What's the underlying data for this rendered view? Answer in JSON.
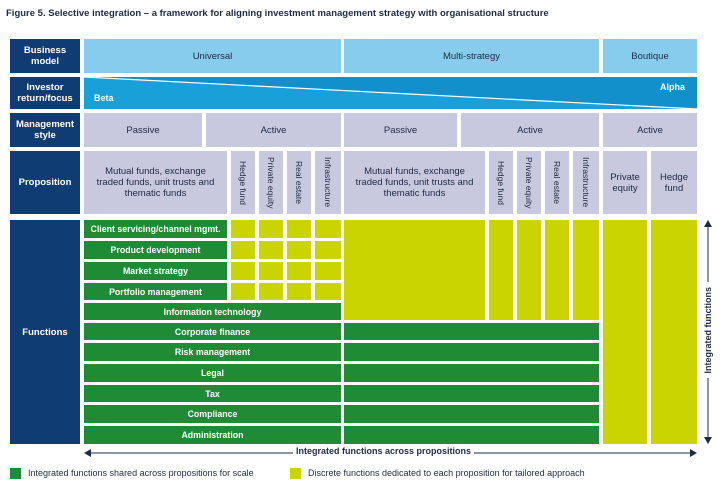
{
  "title": "Figure 5. Selective integration – a framework for aligning investment management strategy with organisational structure",
  "row_headers": {
    "business_model": "Business model",
    "investor_return": "Investor return/focus",
    "management_style": "Management style",
    "proposition": "Proposition",
    "functions": "Functions"
  },
  "business_models": [
    "Universal",
    "Multi-strategy",
    "Boutique"
  ],
  "investor_focus": {
    "left": "Beta",
    "right": "Alpha"
  },
  "management_styles": [
    "Passive",
    "Active",
    "Passive",
    "Active",
    "Active"
  ],
  "propositions": {
    "mutual_funds": "Mutual funds, exchange traded funds, unit trusts and thematic funds",
    "mutual_funds_2": "Mutual funds, exchange traded funds, unit trusts and thematic funds",
    "hedge_fund_v": "Hedge fund",
    "private_equity_v": "Private equity",
    "real_estate_v": "Real estate",
    "infrastructure_v": "Infrastructure",
    "hedge_fund_v2": "Hedge fund",
    "private_equity_v2": "Private equity",
    "real_estate_v2": "Real estate",
    "infrastructure_v2": "Infrastructure",
    "private_equity": "Private equity",
    "hedge_fund": "Hedge fund"
  },
  "functions": [
    "Client servicing/channel mgmt.",
    "Product development",
    "Market strategy",
    "Portfolio management",
    "Information technology",
    "Corporate finance",
    "Risk management",
    "Legal",
    "Tax",
    "Compliance",
    "Administration"
  ],
  "bottom_arrow_label": "Integrated functions across propositions",
  "side_arrow_label": "Integrated functions",
  "legend": {
    "green": "Integrated functions shared across propositions for scale",
    "lime": "Discrete functions dedicated to each proposition for tailored approach"
  },
  "colors": {
    "navy": "#0f3c73",
    "light_blue": "#87ccec",
    "lavender": "#c8c8de",
    "green": "#1f8b35",
    "lime": "#c9d400"
  }
}
